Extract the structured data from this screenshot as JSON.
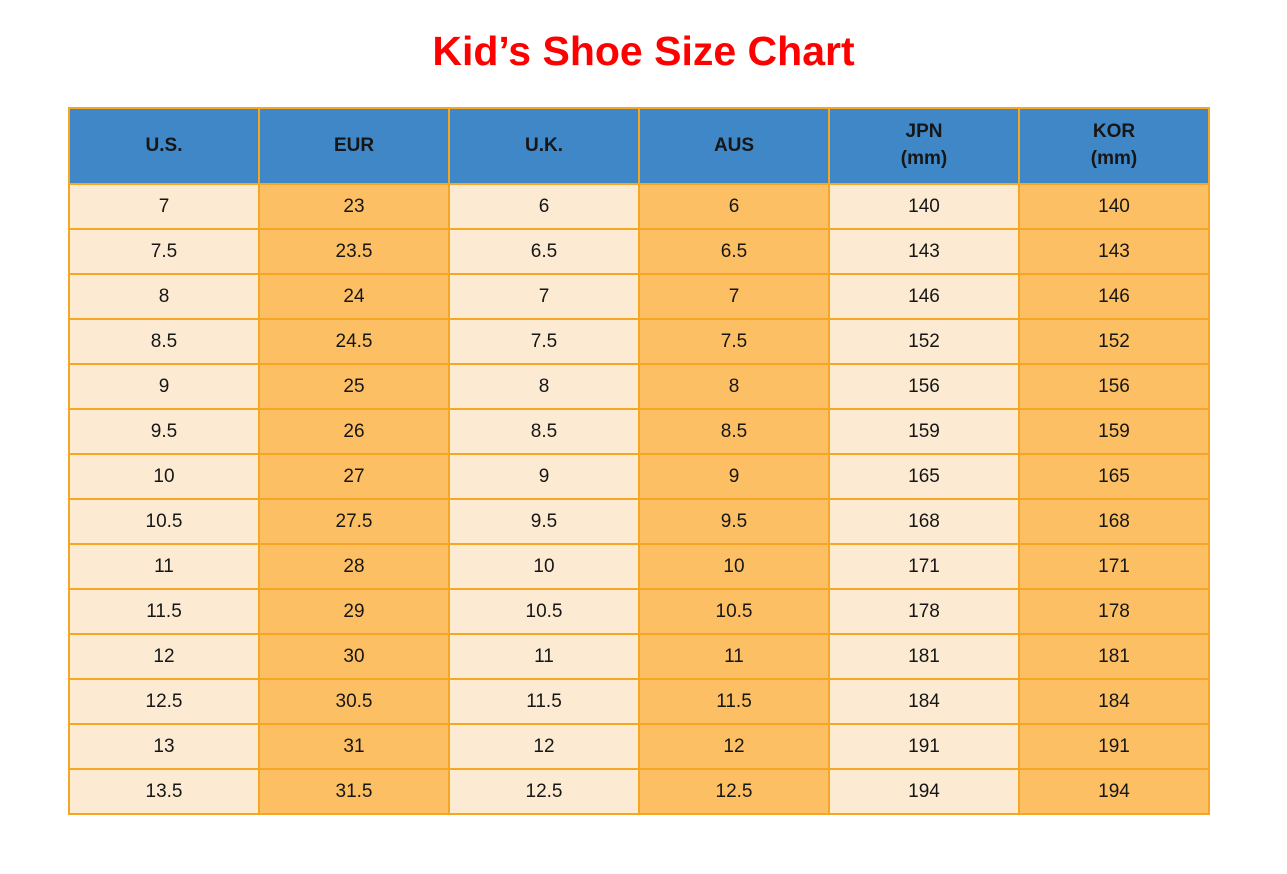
{
  "title": {
    "text": "Kid’s Shoe Size Chart"
  },
  "colors": {
    "title_red": "#ff0000",
    "header_blue": "#3f87c6",
    "cell_cream": "#fcebd2",
    "cell_orange": "#fdbf63",
    "grid_border": "#f5a623",
    "text": "#161616"
  },
  "chart_data": {
    "type": "table",
    "title": "Kid’s Shoe Size Chart",
    "columns": [
      "U.S.",
      "EUR",
      "U.K.",
      "AUS",
      "JPN (mm)",
      "KOR (mm)"
    ],
    "header": [
      {
        "main": "U.S.",
        "sub": ""
      },
      {
        "main": "EUR",
        "sub": ""
      },
      {
        "main": "U.K.",
        "sub": ""
      },
      {
        "main": "AUS",
        "sub": ""
      },
      {
        "main": "JPN",
        "sub": "(mm)"
      },
      {
        "main": "KOR",
        "sub": "(mm)"
      }
    ],
    "rows": [
      [
        "7",
        "23",
        "6",
        "6",
        "140",
        "140"
      ],
      [
        "7.5",
        "23.5",
        "6.5",
        "6.5",
        "143",
        "143"
      ],
      [
        "8",
        "24",
        "7",
        "7",
        "146",
        "146"
      ],
      [
        "8.5",
        "24.5",
        "7.5",
        "7.5",
        "152",
        "152"
      ],
      [
        "9",
        "25",
        "8",
        "8",
        "156",
        "156"
      ],
      [
        "9.5",
        "26",
        "8.5",
        "8.5",
        "159",
        "159"
      ],
      [
        "10",
        "27",
        "9",
        "9",
        "165",
        "165"
      ],
      [
        "10.5",
        "27.5",
        "9.5",
        "9.5",
        "168",
        "168"
      ],
      [
        "11",
        "28",
        "10",
        "10",
        "171",
        "171"
      ],
      [
        "11.5",
        "29",
        "10.5",
        "10.5",
        "178",
        "178"
      ],
      [
        "12",
        "30",
        "11",
        "11",
        "181",
        "181"
      ],
      [
        "12.5",
        "30.5",
        "11.5",
        "11.5",
        "184",
        "184"
      ],
      [
        "13",
        "31",
        "12",
        "12",
        "191",
        "191"
      ],
      [
        "13.5",
        "31.5",
        "12.5",
        "12.5",
        "194",
        "194"
      ]
    ]
  }
}
